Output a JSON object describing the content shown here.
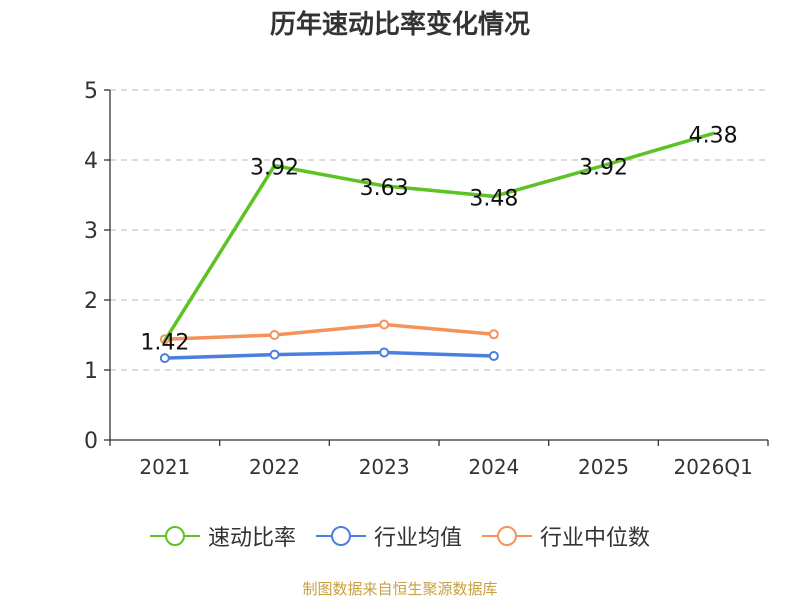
{
  "chart_data": {
    "type": "line",
    "title": "历年速动比率变化情况",
    "source": "制图数据来自恒生聚源数据库",
    "categories": [
      "2021",
      "2022",
      "2023",
      "2024",
      "2025",
      "2026Q1"
    ],
    "ylim": [
      0,
      5
    ],
    "yticks": [
      "0",
      "1",
      "2",
      "3",
      "4",
      "5"
    ],
    "grid": true,
    "legend_position": "bottom",
    "series": [
      {
        "name": "速动比率",
        "color": "#5ec224",
        "values": [
          1.42,
          3.92,
          3.63,
          3.48,
          3.92,
          4.38
        ],
        "labels": [
          "1.42",
          "3.92",
          "3.63",
          "3.48",
          "3.92",
          "4.38"
        ],
        "markers": false
      },
      {
        "name": "行业均值",
        "color": "#4a7fdc",
        "values": [
          1.17,
          1.22,
          1.25,
          1.2,
          null,
          null
        ],
        "markers": true
      },
      {
        "name": "行业中位数",
        "color": "#f4925a",
        "values": [
          1.44,
          1.5,
          1.65,
          1.51,
          null,
          null
        ],
        "markers": true
      }
    ]
  }
}
